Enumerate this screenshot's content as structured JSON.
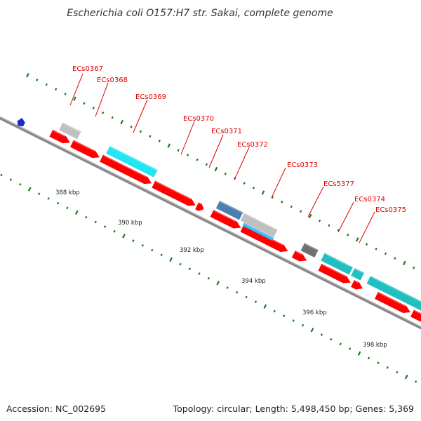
{
  "title": "Escherichia coli O157:H7 str. Sakai, complete genome",
  "accession": "Accession: NC_002695",
  "summary": "Topology: circular; Length: 5,498,450 bp; Genes: 5,369",
  "colors": {
    "backbone": "#888888",
    "cds_forward": "#ff0000",
    "grey_feature": "#c0c0c0",
    "dark_grey_feature": "#707070",
    "cyan_feature": "#22e5f0",
    "teal_feature": "#20c0c0",
    "steelblue_feature": "#4a7fb0",
    "skyblue_feature": "#3cb8f0",
    "blue_marker": "#1a2bd0",
    "tick": "#1a7a1a",
    "label": "#dd0000"
  },
  "scale": {
    "unit": "kbp",
    "tick_labels": [
      "388 kbp",
      "390 kbp",
      "392 kbp",
      "394 kbp",
      "396 kbp",
      "398 kbp"
    ]
  },
  "genes": [
    {
      "name": "ECs0367"
    },
    {
      "name": "ECs0368"
    },
    {
      "name": "ECs0369"
    },
    {
      "name": "ECs0370"
    },
    {
      "name": "ECs0371"
    },
    {
      "name": "ECs0372"
    },
    {
      "name": "ECs0373"
    },
    {
      "name": "ECs5377"
    },
    {
      "name": "ECs0374"
    },
    {
      "name": "ECs0375"
    }
  ]
}
